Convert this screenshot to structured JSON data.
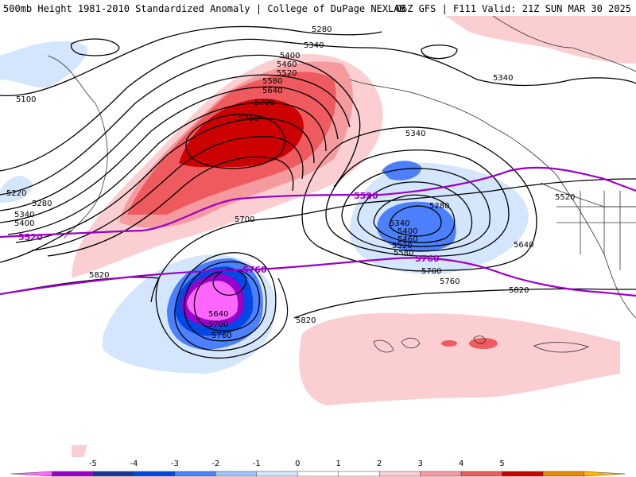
{
  "header": {
    "title_left": "500mb Height 1981-2010 Standardized Anomaly | College of DuPage NEXLAB",
    "title_right": "06Z GFS | F111 Valid: 21Z SUN MAR 30 2025"
  },
  "contour_labels": {
    "l5100": "5100",
    "l5220": "5220",
    "l5280a": "5280",
    "l5340a": "5340",
    "l5400a": "5400",
    "l5280b": "5280",
    "l5340b": "5340",
    "l5400b": "5400",
    "l5460": "5460",
    "l5520": "5520",
    "l5580": "5580",
    "l5640": "5640",
    "l5700": "5700",
    "l5760": "5760",
    "l5700b": "5700",
    "l5340c": "5340",
    "l5340d": "5340",
    "l5280c": "5280",
    "l5340e": "5340",
    "l5400c": "5400",
    "l5460b": "5460",
    "l5520b": "5520",
    "l5580b": "5580",
    "l5700c": "5700",
    "l5760b": "5760",
    "l5640b": "5640",
    "l5520c": "5520",
    "l5820a": "5820",
    "l5820b": "5820",
    "l5820c": "5820",
    "l5640c": "5640",
    "l5700d": "5700",
    "l5760c": "5760"
  },
  "purple_labels": {
    "p5520a": "5520",
    "p5520b": "5520",
    "p5760a": "5760",
    "p5760b": "5760"
  },
  "legend": {
    "colors": [
      "#ff66ff",
      "#9900cc",
      "#1a3399",
      "#0047e6",
      "#4d80ff",
      "#9ec5f5",
      "#d4e6fb",
      "#ffffff",
      "#ffffff",
      "#fbcfd1",
      "#f59a9e",
      "#ef5a5e",
      "#cc0000",
      "#e68a00",
      "#ffb800"
    ],
    "ticks": [
      {
        "label": "-5",
        "color": "#000000"
      },
      {
        "label": "-4",
        "color": "#000000"
      },
      {
        "label": "-3",
        "color": "#000000"
      },
      {
        "label": "-2",
        "color": "#000000"
      },
      {
        "label": "-1",
        "color": "#000000"
      },
      {
        "label": "0",
        "color": "#000000"
      },
      {
        "label": "1",
        "color": "#000000"
      },
      {
        "label": "2",
        "color": "#000000"
      },
      {
        "label": "3",
        "color": "#000000"
      },
      {
        "label": "4",
        "color": "#000000"
      },
      {
        "label": "5",
        "color": "#000000"
      }
    ]
  }
}
